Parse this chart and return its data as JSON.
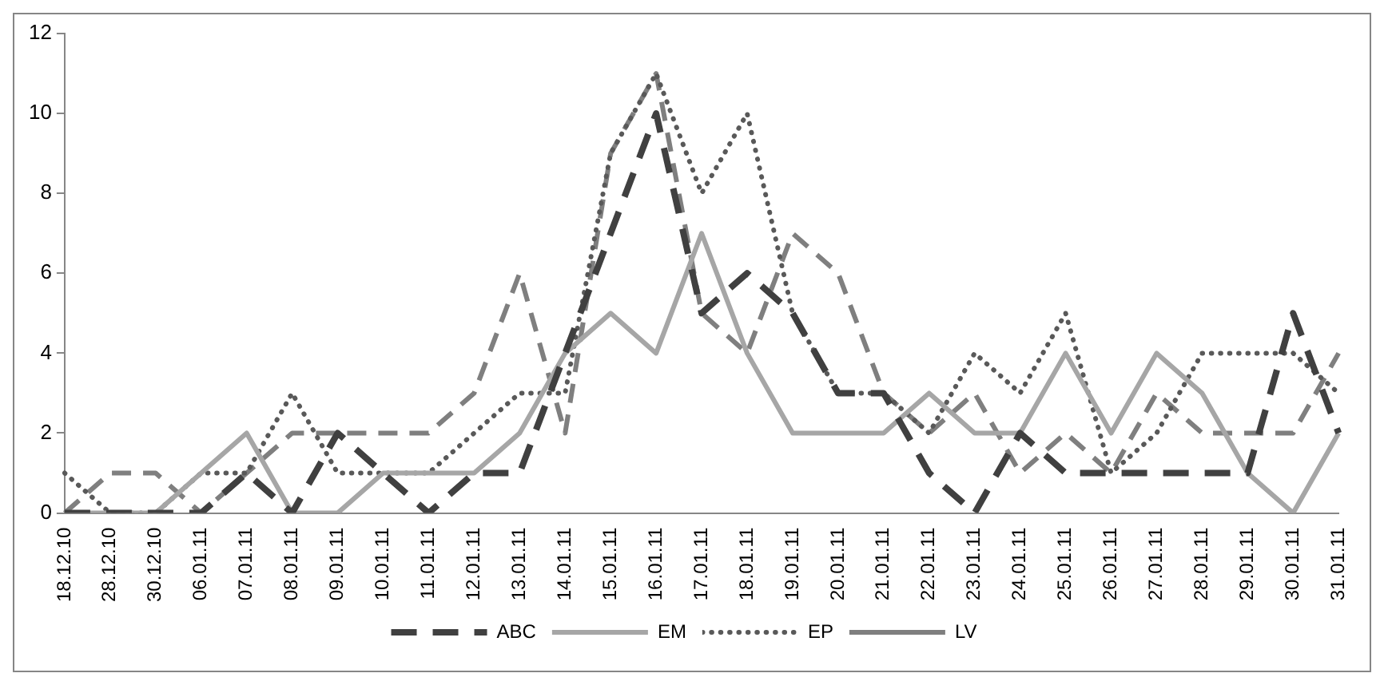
{
  "chart_data": {
    "type": "line",
    "categories": [
      "18.12.10",
      "28.12.10",
      "30.12.10",
      "06.01.11",
      "07.01.11",
      "08.01.11",
      "09.01.11",
      "10.01.11",
      "11.01.11",
      "12.01.11",
      "13.01.11",
      "14.01.11",
      "15.01.11",
      "16.01.11",
      "17.01.11",
      "18.01.11",
      "19.01.11",
      "20.01.11",
      "21.01.11",
      "22.01.11",
      "23.01.11",
      "24.01.11",
      "25.01.11",
      "26.01.11",
      "27.01.11",
      "28.01.11",
      "29.01.11",
      "30.01.11",
      "31.01.11"
    ],
    "series": [
      {
        "name": "ABC",
        "color": "#404040",
        "line_style": "dashed",
        "values": [
          0,
          0,
          0,
          0,
          1,
          0,
          2,
          1,
          0,
          1,
          1,
          4,
          7,
          10,
          5,
          6,
          5,
          3,
          3,
          1,
          0,
          2,
          1,
          1,
          1,
          1,
          1,
          5,
          2
        ]
      },
      {
        "name": "EM",
        "color": "#a6a6a6",
        "line_style": "solid",
        "values": [
          0,
          0,
          0,
          1,
          2,
          0,
          0,
          1,
          1,
          1,
          2,
          4,
          5,
          4,
          7,
          4,
          2,
          2,
          2,
          3,
          2,
          2,
          4,
          2,
          4,
          3,
          1,
          0,
          2
        ]
      },
      {
        "name": "EP",
        "color": "#595959",
        "line_style": "dotted",
        "values": [
          1,
          0,
          0,
          1,
          1,
          3,
          1,
          1,
          1,
          2,
          3,
          3,
          9,
          11,
          8,
          10,
          5,
          3,
          3,
          2,
          4,
          3,
          5,
          1,
          2,
          4,
          4,
          4,
          3
        ]
      },
      {
        "name": "LV",
        "color": "#7f7f7f",
        "line_style": "dashed",
        "values": [
          0,
          1,
          1,
          0,
          1,
          2,
          2,
          2,
          2,
          3,
          6,
          2,
          9,
          11,
          5,
          4,
          7,
          6,
          3,
          2,
          3,
          1,
          2,
          1,
          3,
          2,
          2,
          2,
          4
        ]
      }
    ],
    "ylim": [
      0,
      12
    ],
    "yticks": [
      0,
      2,
      4,
      6,
      8,
      10,
      12
    ],
    "grid": false,
    "legend": "bottom",
    "marker": "none"
  }
}
